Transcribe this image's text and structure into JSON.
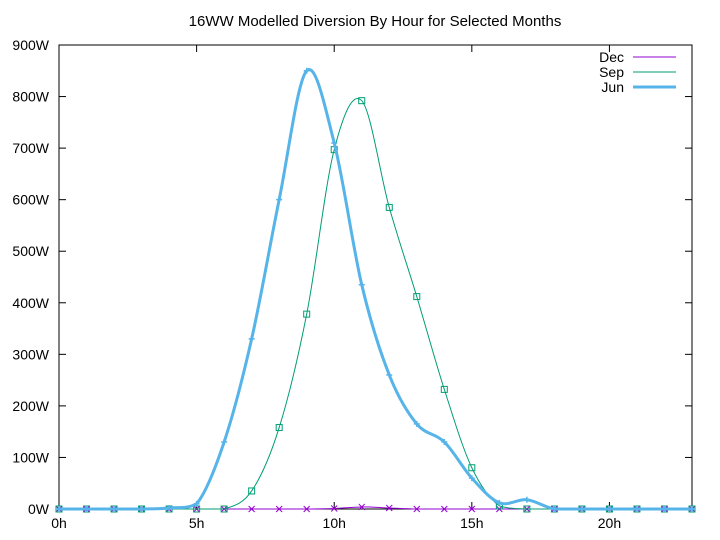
{
  "chart_data": {
    "type": "line",
    "title": "16WW Modelled Diversion By Hour for Selected Months",
    "xlabel": "",
    "ylabel": "",
    "xlim": [
      0,
      23
    ],
    "ylim": [
      0,
      900
    ],
    "x_ticks": [
      {
        "value": 0,
        "label": "0h"
      },
      {
        "value": 5,
        "label": "5h"
      },
      {
        "value": 10,
        "label": "10h"
      },
      {
        "value": 15,
        "label": "15h"
      },
      {
        "value": 20,
        "label": "20h"
      }
    ],
    "y_ticks": [
      {
        "value": 0,
        "label": "0W"
      },
      {
        "value": 100,
        "label": "100W"
      },
      {
        "value": 200,
        "label": "200W"
      },
      {
        "value": 300,
        "label": "300W"
      },
      {
        "value": 400,
        "label": "400W"
      },
      {
        "value": 500,
        "label": "500W"
      },
      {
        "value": 600,
        "label": "600W"
      },
      {
        "value": 700,
        "label": "700W"
      },
      {
        "value": 800,
        "label": "800W"
      },
      {
        "value": 900,
        "label": "900W"
      }
    ],
    "grid": false,
    "legend": "top-right",
    "x": [
      0,
      1,
      2,
      3,
      4,
      5,
      6,
      7,
      8,
      9,
      10,
      11,
      12,
      13,
      14,
      15,
      16,
      17,
      18,
      19,
      20,
      21,
      22,
      23
    ],
    "series": [
      {
        "name": "Dec",
        "color": "#9400d3",
        "marker": "x",
        "width": 1,
        "values": [
          0,
          0,
          0,
          0,
          0,
          0,
          0,
          0,
          0,
          0,
          1,
          4,
          2,
          0,
          0,
          0,
          0,
          0,
          0,
          0,
          0,
          0,
          0,
          0
        ]
      },
      {
        "name": "Sep",
        "color": "#009e73",
        "marker": "square",
        "width": 1,
        "values": [
          0,
          0,
          0,
          0,
          0,
          0,
          0,
          35,
          158,
          378,
          697,
          792,
          585,
          412,
          232,
          80,
          6,
          0,
          0,
          0,
          0,
          0,
          0,
          0
        ]
      },
      {
        "name": "Jun",
        "color": "#56b4e9",
        "marker": "plus",
        "width": 3,
        "values": [
          0,
          0,
          0,
          0,
          2,
          10,
          130,
          330,
          600,
          850,
          710,
          435,
          260,
          165,
          130,
          60,
          12,
          18,
          0,
          0,
          0,
          0,
          0,
          0
        ]
      }
    ]
  }
}
